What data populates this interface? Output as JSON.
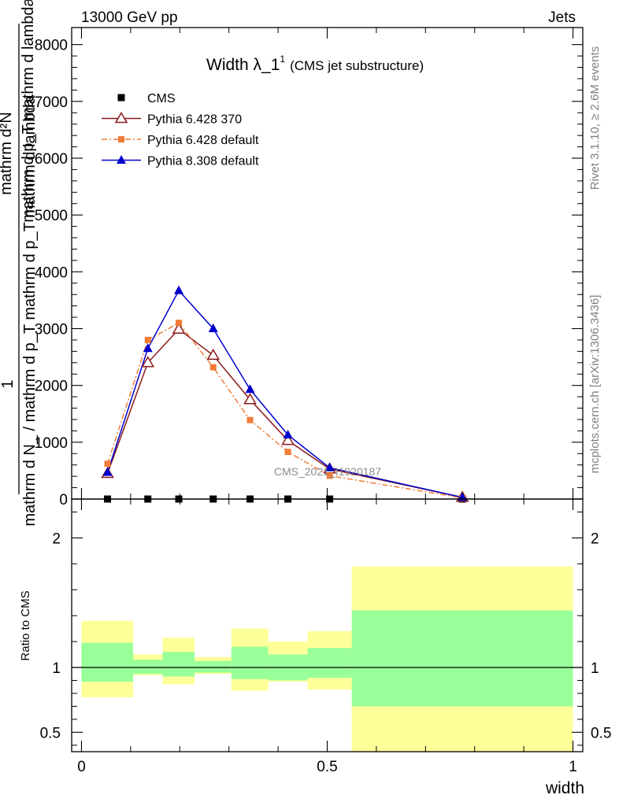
{
  "header": {
    "left": "13000 GeV pp",
    "right": "Jets"
  },
  "side": {
    "rivet": "Rivet 3.1.10, ≥ 2.6M events",
    "mcplots": "mcplots.cern.ch [arXiv:1306.3436]"
  },
  "chart_data": {
    "type": "line",
    "title_main": "Width λ_1",
    "title_sup": "1",
    "title_sub": "(CMS jet substructure)",
    "watermark": "CMS_2021_I1920187",
    "xlabel": "width",
    "ylabel_main": {
      "numer": "1",
      "denom": "mathrm d N_ / mathrm d p_T mathrm d p_T mathrm d lambda",
      "line2": "mathrm d²N",
      "line1": "mathrm d p_T mathrm d lambda"
    },
    "ylabel_ratio": "Ratio to CMS",
    "xlim": [
      -0.02,
      1.02
    ],
    "ylim_main": [
      0,
      8300
    ],
    "ylim_ratio": [
      0.35,
      2.3
    ],
    "ticks_x": [
      "0",
      "0.5",
      "1"
    ],
    "ticks_main": [
      "0",
      "1000",
      "2000",
      "3000",
      "4000",
      "5000",
      "6000",
      "7000",
      "8000"
    ],
    "ticks_ratio": [
      "0.5",
      "1",
      "2"
    ],
    "bins": [
      {
        "lo": 0.0,
        "hi": 0.105
      },
      {
        "lo": 0.105,
        "hi": 0.165
      },
      {
        "lo": 0.165,
        "hi": 0.23
      },
      {
        "lo": 0.23,
        "hi": 0.305
      },
      {
        "lo": 0.305,
        "hi": 0.38
      },
      {
        "lo": 0.38,
        "hi": 0.46
      },
      {
        "lo": 0.46,
        "hi": 0.55
      },
      {
        "lo": 0.55,
        "hi": 1.0
      }
    ],
    "x": [
      0.053,
      0.135,
      0.198,
      0.268,
      0.343,
      0.42,
      0.505,
      0.775
    ],
    "series": [
      {
        "name": "CMS",
        "color": "#000000",
        "marker": "square",
        "dash": "",
        "values": [
          0,
          0,
          0,
          0,
          0,
          0,
          0,
          0
        ]
      },
      {
        "name": "Pythia 6.428 370",
        "color": "#8b1a1a",
        "marker": "triangle-open",
        "dash": "",
        "values": [
          450,
          2400,
          2990,
          2530,
          1750,
          1030,
          530,
          30
        ]
      },
      {
        "name": "Pythia 6.428 default",
        "color": "#f07c38",
        "marker": "square-small",
        "dash": "7,3,2,3",
        "values": [
          620,
          2800,
          3100,
          2320,
          1390,
          830,
          410,
          20
        ]
      },
      {
        "name": "Pythia 8.308 default",
        "color": "#0000cc",
        "marker": "triangle-filled",
        "dash": "",
        "values": [
          470,
          2650,
          3670,
          3000,
          1930,
          1130,
          550,
          30
        ]
      }
    ],
    "ratio_bands": {
      "green_color": "#99ff99",
      "yellow_color": "#ffff99",
      "green_lo": [
        0.89,
        0.95,
        0.93,
        0.96,
        0.91,
        0.9,
        0.92,
        0.7
      ],
      "green_hi": [
        1.19,
        1.06,
        1.12,
        1.05,
        1.16,
        1.1,
        1.15,
        1.44
      ],
      "yellow_lo": [
        0.77,
        0.94,
        0.87,
        0.95,
        0.82,
        0.89,
        0.83,
        0.34
      ],
      "yellow_hi": [
        1.36,
        1.1,
        1.23,
        1.08,
        1.3,
        1.2,
        1.28,
        1.78
      ]
    }
  }
}
